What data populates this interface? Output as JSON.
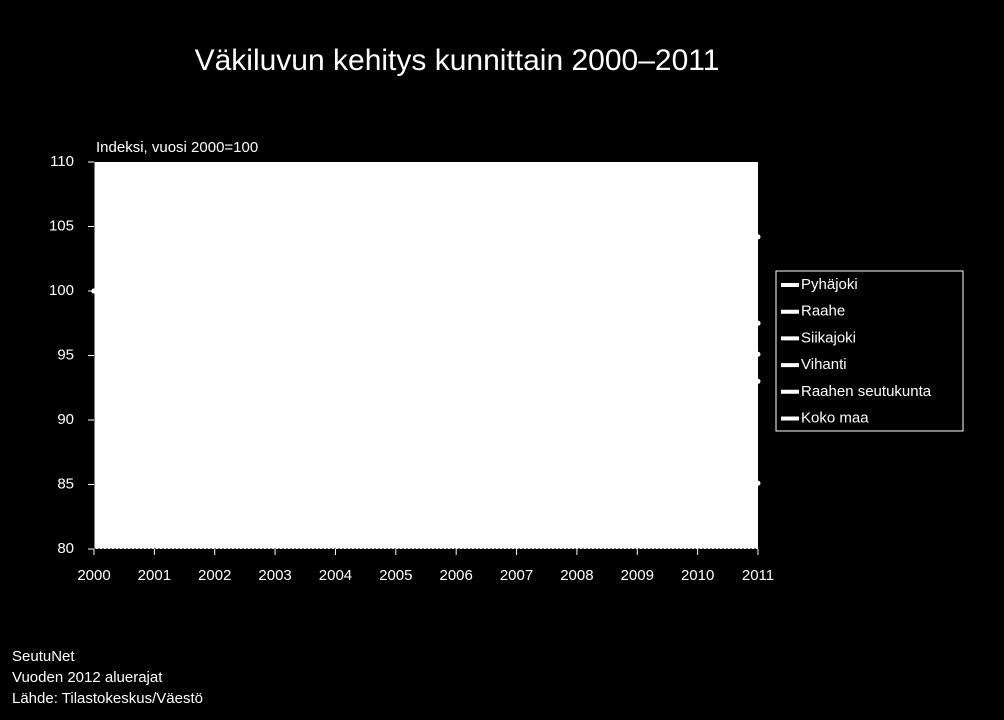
{
  "chart_data": {
    "type": "line",
    "title": "Väkiluvun kehitys kunnittain 2000–2011",
    "y_label": "Indeksi, vuosi 2000=100",
    "x": [
      2000,
      2001,
      2002,
      2003,
      2004,
      2005,
      2006,
      2007,
      2008,
      2009,
      2010,
      2011
    ],
    "xlim": [
      2000,
      2011
    ],
    "xticks": [
      2000,
      2001,
      2002,
      2003,
      2004,
      2005,
      2006,
      2007,
      2008,
      2009,
      2010,
      2011
    ],
    "ylim": [
      80,
      110
    ],
    "yticks": [
      80,
      85,
      90,
      95,
      100,
      105,
      110
    ],
    "legend": "right",
    "series": [
      {
        "name": "Pyhäjoki",
        "color": "#ffffff",
        "values": [
          100,
          null,
          null,
          null,
          null,
          null,
          null,
          null,
          null,
          null,
          null,
          93
        ]
      },
      {
        "name": "Raahe",
        "color": "#ffffff",
        "values": [
          100,
          null,
          null,
          null,
          null,
          null,
          null,
          null,
          null,
          null,
          null,
          97.5
        ]
      },
      {
        "name": "Siikajoki",
        "color": "#ffffff",
        "values": [
          100,
          null,
          null,
          null,
          null,
          null,
          null,
          null,
          null,
          null,
          null,
          95.1
        ]
      },
      {
        "name": "Vihanti",
        "color": "#ffffff",
        "values": [
          100,
          null,
          null,
          null,
          null,
          null,
          null,
          null,
          null,
          null,
          null,
          85.1
        ]
      },
      {
        "name": "Raahen seutukunta",
        "color": "#ffffff",
        "values": [
          100,
          null,
          null,
          null,
          null,
          null,
          null,
          null,
          null,
          null,
          null,
          97.5
        ]
      },
      {
        "name": "Koko maa",
        "color": "#ffffff",
        "values": [
          100,
          null,
          null,
          null,
          null,
          null,
          null,
          null,
          null,
          null,
          null,
          104.2
        ]
      }
    ],
    "footer": [
      "SeutuNet",
      "Vuoden 2012 aluerajat",
      "Lähde: Tilastokeskus/Väestö"
    ]
  }
}
